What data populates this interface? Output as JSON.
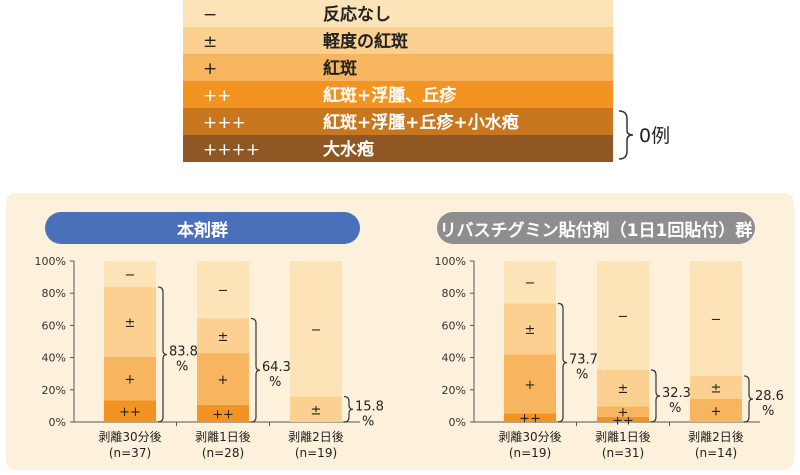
{
  "legend": {
    "items": [
      {
        "symbol": "−",
        "label": "反応なし",
        "color": "#fde3b8"
      },
      {
        "symbol": "±",
        "label": "軽度の紅斑",
        "color": "#fbd090"
      },
      {
        "symbol": "+",
        "label": "紅斑",
        "color": "#f8b55f"
      },
      {
        "symbol": "++",
        "label": "紅斑+浮腫、丘疹",
        "color": "#f39422"
      },
      {
        "symbol": "+++",
        "label": "紅斑+浮腫+丘疹+小水疱",
        "color": "#c8771f"
      },
      {
        "symbol": "++++",
        "label": "大水疱",
        "color": "#8f5723"
      }
    ],
    "zero_note": "0例"
  },
  "chart_data": [
    {
      "type": "bar",
      "title": "本剤群",
      "title_color": "#4a70b9",
      "yticks": [
        "0%",
        "20%",
        "40%",
        "60%",
        "80%",
        "100%"
      ],
      "ylim": [
        0,
        100
      ],
      "categories": [
        "剥離30分後",
        "剥離1日後",
        "剥離2日後"
      ],
      "n_labels": [
        "(n=37)",
        "(n=28)",
        "(n=19)"
      ],
      "series": [
        {
          "symbol": "++",
          "values": [
            13.5,
            10.7,
            0
          ]
        },
        {
          "symbol": "+",
          "values": [
            27.0,
            32.1,
            0
          ]
        },
        {
          "symbol": "±",
          "values": [
            43.3,
            21.5,
            15.8
          ]
        },
        {
          "symbol": "−",
          "values": [
            16.2,
            35.7,
            84.2
          ]
        }
      ],
      "positive_totals": [
        "83.8",
        "64.3",
        "15.8"
      ],
      "percent_sign": "%"
    },
    {
      "type": "bar",
      "title": "リバスチグミン貼付剤（1日1回貼付）群",
      "title_color": "#8e8e8e",
      "yticks": [
        "0%",
        "20%",
        "40%",
        "60%",
        "80%",
        "100%"
      ],
      "ylim": [
        0,
        100
      ],
      "categories": [
        "剥離30分後",
        "剥離1日後",
        "剥離2日後"
      ],
      "n_labels": [
        "(n=19)",
        "(n=31)",
        "(n=14)"
      ],
      "series": [
        {
          "symbol": "++",
          "values": [
            5.3,
            3.2,
            0
          ]
        },
        {
          "symbol": "+",
          "values": [
            36.8,
            6.5,
            14.3
          ]
        },
        {
          "symbol": "±",
          "values": [
            31.6,
            22.6,
            14.3
          ]
        },
        {
          "symbol": "−",
          "values": [
            26.3,
            67.7,
            71.4
          ]
        }
      ],
      "positive_totals": [
        "73.7",
        "32.3",
        "28.6"
      ],
      "percent_sign": "%"
    }
  ]
}
